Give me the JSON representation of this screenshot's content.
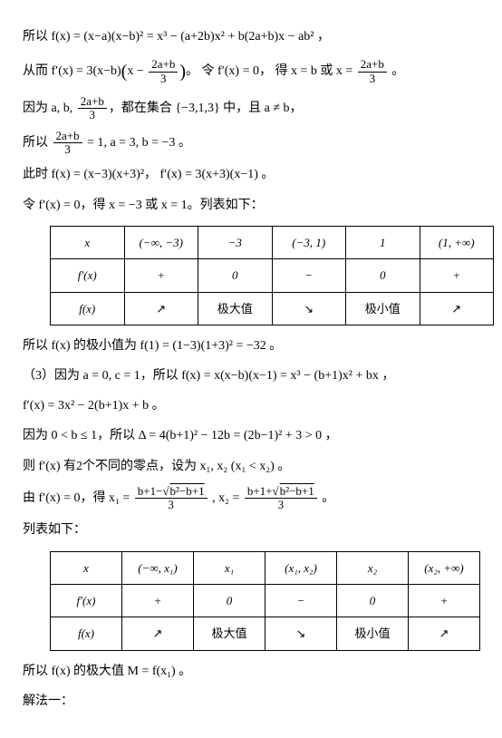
{
  "p1": "所以 f(x) = (x−a)(x−b)² = x³ − (a+2b)x² + b(2a+b)x − ab² ，",
  "p2_a": "从而 f′(x) = 3(x−b)",
  "p2_b": "x − ",
  "p2_c": "2a+b",
  "p2_d": "3",
  "p2_e": "。 令 f′(x) = 0， 得 x = b 或 x = ",
  "p2_f": " 。",
  "p3_a": "因为 a, b, ",
  "p3_b": "，都在集合 {−3,1,3} 中，且 a ≠ b，",
  "p4_a": "所以 ",
  "p4_b": " = 1, a = 3, b = −3 。",
  "p5": "此时 f(x) = (x−3)(x+3)²， f′(x) = 3(x+3)(x−1) 。",
  "p6": "令 f′(x) = 0，得 x = −3 或 x = 1。列表如下：",
  "t1": {
    "r1": [
      "x",
      "(−∞, −3)",
      "−3",
      "(−3, 1)",
      "1",
      "(1, +∞)"
    ],
    "r2": [
      "f′(x)",
      "+",
      "0",
      "−",
      "0",
      "+"
    ],
    "r3": [
      "f(x)",
      "↗",
      "极大值",
      "↘",
      "极小值",
      "↗"
    ]
  },
  "p7": "所以 f(x) 的极小值为 f(1) = (1−3)(1+3)² = −32 。",
  "p8": "（3）因为 a = 0, c = 1，所以 f(x) = x(x−b)(x−1) = x³ − (b+1)x² + bx ，",
  "p9": "f′(x) = 3x² − 2(b+1)x + b 。",
  "p10": "因为 0 < b ≤ 1，所以 Δ = 4(b+1)² − 12b = (2b−1)² + 3 > 0 ，",
  "p11": "则 f′(x) 有2个不同的零点，设为 x₁, x₂ (x₁ < x₂) 。",
  "p12_a": "由 f′(x) = 0，得 x₁ = ",
  "p12_n1": "b+1−√",
  "p12_r": "b²−b+1",
  "p12_d": "3",
  "p12_b": " , x₂ = ",
  "p12_n2": "b+1+√",
  "p12_c": " 。",
  "p13": "列表如下：",
  "t2": {
    "r1": [
      "x",
      "(−∞, x₁)",
      "x₁",
      "(x₁, x₂)",
      "x₂",
      "(x₂, +∞)"
    ],
    "r2": [
      "f′(x)",
      "+",
      "0",
      "−",
      "0",
      "+"
    ],
    "r3": [
      "f(x)",
      "↗",
      "极大值",
      "↘",
      "极小值",
      "↗"
    ]
  },
  "p14": "所以 f(x) 的极大值 M = f(x₁) 。",
  "p15": "解法一："
}
